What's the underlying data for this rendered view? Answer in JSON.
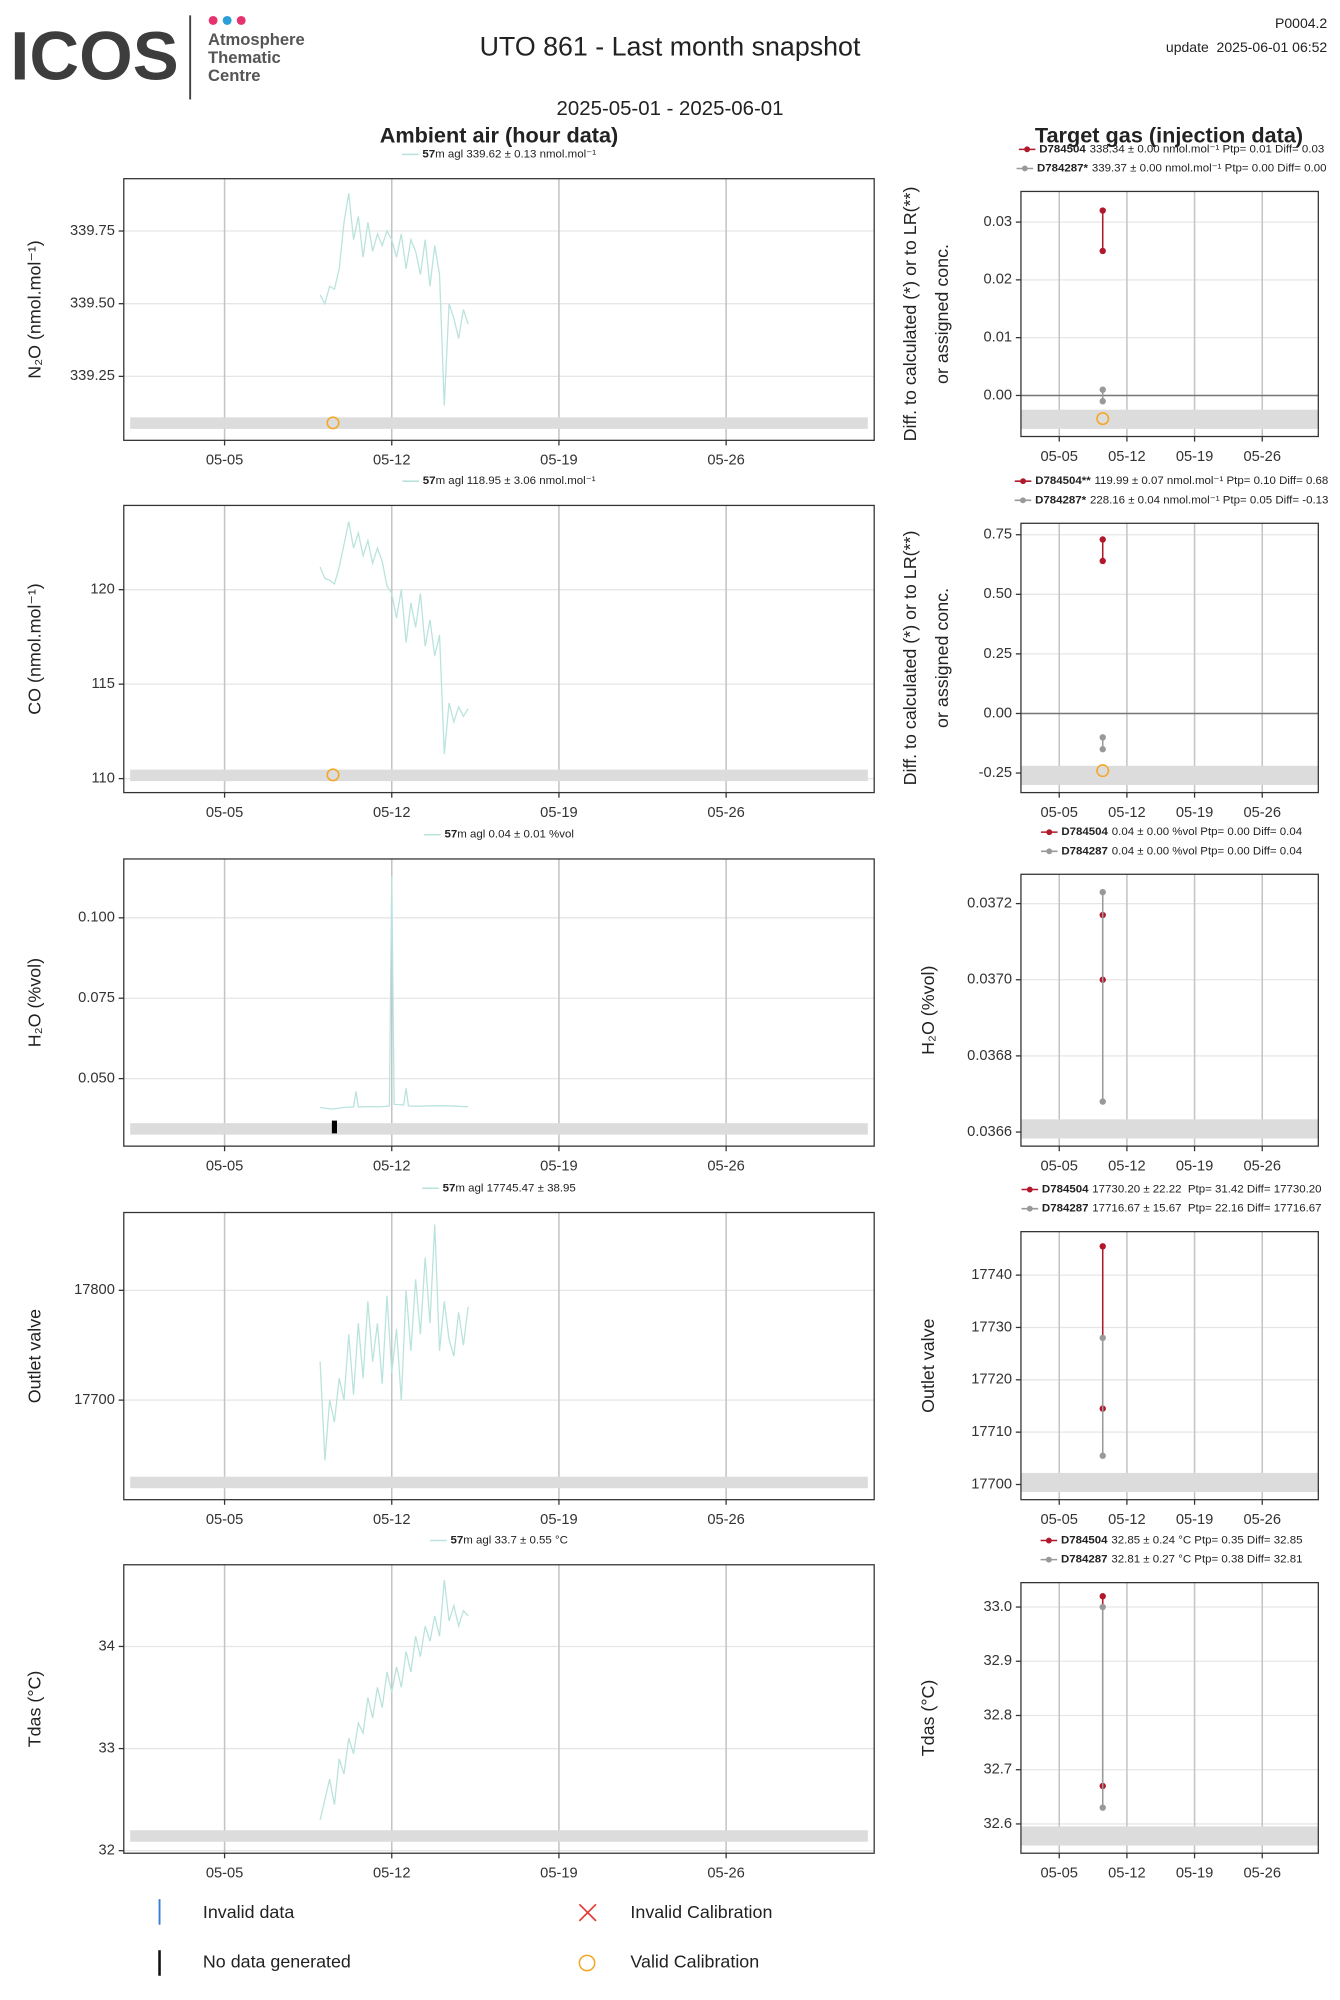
{
  "header": {
    "logo": "ICOS",
    "logo_lines": [
      "Atmosphere",
      "Thematic",
      "Centre"
    ],
    "title": "UTO 861 - Last month snapshot",
    "date_range": "2025-05-01 - 2025-06-01",
    "code": "P0004.2",
    "update": "update  2025-06-01 06:52",
    "section_left": "Ambient air (hour data)",
    "section_right": "Target gas (injection data)"
  },
  "legend": [
    "Invalid data",
    "Invalid Calibration",
    "No data generated",
    "Valid Calibration"
  ],
  "chart_data": [
    {
      "type": "line",
      "ylabel": "N₂O (nmol.mol⁻¹)",
      "xlim": [
        0.78,
        32.2
      ],
      "xticks": [
        {
          "value": 5,
          "label": "05-05"
        },
        {
          "value": 12,
          "label": "05-12"
        },
        {
          "value": 19,
          "label": "05-19"
        },
        {
          "value": 26,
          "label": "05-26"
        }
      ],
      "ylim": [
        339.03,
        339.93
      ],
      "yticks": [
        339.25,
        {
          "value": 339.5,
          "label": "339.50"
        },
        339.75
      ],
      "grid": true,
      "series": [
        {
          "name": "57",
          "stats": "m agl 339.62 ± 0.13 nmol.mol⁻¹",
          "color": "#b9e3dc",
          "x": [
            9.0,
            9.2,
            9.4,
            9.6,
            9.8,
            10.0,
            10.2,
            10.4,
            10.6,
            10.8,
            11.0,
            11.2,
            11.4,
            11.6,
            11.8,
            12.0,
            12.2,
            12.4,
            12.6,
            12.8,
            13.0,
            13.2,
            13.4,
            13.6,
            13.8,
            14.0,
            14.2,
            14.4,
            14.6,
            14.8,
            15.0,
            15.2
          ],
          "values": [
            339.53,
            339.5,
            339.56,
            339.55,
            339.62,
            339.78,
            339.88,
            339.72,
            339.8,
            339.66,
            339.78,
            339.68,
            339.74,
            339.7,
            339.75,
            339.72,
            339.66,
            339.74,
            339.62,
            339.72,
            339.68,
            339.6,
            339.72,
            339.56,
            339.7,
            339.6,
            339.15,
            339.5,
            339.45,
            339.38,
            339.48,
            339.43
          ]
        }
      ],
      "calibration": {
        "x": 9.54,
        "y": 339.09
      }
    },
    {
      "type": "dotline",
      "ylabel": [
        "Diff. to calculated (*) or to LR(**)",
        "or assigned conc."
      ],
      "xlim": [
        1.04,
        31.8
      ],
      "xticks": [
        {
          "value": 5,
          "label": "05-05"
        },
        {
          "value": 12,
          "label": "05-12"
        },
        {
          "value": 19,
          "label": "05-19"
        },
        {
          "value": 26,
          "label": "05-26"
        }
      ],
      "ylim": [
        -0.0071,
        0.0353
      ],
      "yticks": [
        {
          "value": 0,
          "label": "0.00"
        },
        0.01,
        0.02,
        0.03
      ],
      "grid": true,
      "zero_line": true,
      "series": [
        {
          "name": "D784504",
          "stats": "338.34 ± 0.00 nmol.mol⁻¹ Ptp= 0.01 Diff= 0.03",
          "color": "#b2182b",
          "x": [
            9.5,
            9.5
          ],
          "values": [
            0.032,
            0.025
          ]
        },
        {
          "name": "D784287*",
          "stats": "339.37 ± 0.00 nmol.mol⁻¹ Ptp= 0.00 Diff= 0.00",
          "color": "#999999",
          "x": [
            9.5,
            9.5
          ],
          "values": [
            0.001,
            -0.001
          ]
        }
      ],
      "calibration": {
        "x": 9.5,
        "y": -0.004
      }
    },
    {
      "type": "line",
      "ylabel": "CO (nmol.mol⁻¹)",
      "xlim": [
        0.78,
        32.2
      ],
      "xticks": [
        {
          "value": 5,
          "label": "05-05"
        },
        {
          "value": 12,
          "label": "05-12"
        },
        {
          "value": 19,
          "label": "05-19"
        },
        {
          "value": 26,
          "label": "05-26"
        }
      ],
      "ylim": [
        109.26,
        124.46
      ],
      "yticks": [
        110,
        115,
        120
      ],
      "grid": true,
      "series": [
        {
          "name": "57",
          "stats": "m agl 118.95 ± 3.06 nmol.mol⁻¹",
          "color": "#b9e3dc",
          "x": [
            9.0,
            9.2,
            9.4,
            9.6,
            9.8,
            10.0,
            10.2,
            10.4,
            10.6,
            10.8,
            11.0,
            11.2,
            11.4,
            11.6,
            11.8,
            12.0,
            12.2,
            12.4,
            12.6,
            12.8,
            13.0,
            13.2,
            13.4,
            13.6,
            13.8,
            14.0,
            14.2,
            14.4,
            14.6,
            14.8,
            15.0,
            15.2
          ],
          "values": [
            121.2,
            120.6,
            120.5,
            120.3,
            121.2,
            122.4,
            123.6,
            122.2,
            123.0,
            121.8,
            122.6,
            121.4,
            122.2,
            121.5,
            120.2,
            119.8,
            118.5,
            120.0,
            117.2,
            119.3,
            118.0,
            119.8,
            117.0,
            118.4,
            116.5,
            117.6,
            111.3,
            114.0,
            113.0,
            113.8,
            113.3,
            113.7
          ]
        }
      ],
      "calibration": {
        "x": 9.54,
        "y": 110.2
      }
    },
    {
      "type": "dotline",
      "ylabel": [
        "Diff. to calculated (*) or to LR(**)",
        "or assigned conc."
      ],
      "xlim": [
        1.04,
        31.8
      ],
      "xticks": [
        {
          "value": 5,
          "label": "05-05"
        },
        {
          "value": 12,
          "label": "05-12"
        },
        {
          "value": 19,
          "label": "05-19"
        },
        {
          "value": 26,
          "label": "05-26"
        }
      ],
      "ylim": [
        -0.332,
        0.798
      ],
      "yticks": [
        -0.25,
        {
          "value": 0,
          "label": "0.00"
        },
        0.25,
        {
          "value": 0.5,
          "label": "0.50"
        },
        0.75
      ],
      "grid": true,
      "zero_line": true,
      "series": [
        {
          "name": "D784504**",
          "stats": "119.99 ± 0.07 nmol.mol⁻¹ Ptp= 0.10 Diff= 0.68",
          "color": "#b2182b",
          "x": [
            9.5,
            9.5
          ],
          "values": [
            0.73,
            0.64
          ]
        },
        {
          "name": "D784287*",
          "stats": "228.16 ± 0.04 nmol.mol⁻¹ Ptp= 0.05 Diff= -0.13",
          "color": "#999999",
          "x": [
            9.5,
            9.5
          ],
          "values": [
            -0.1,
            -0.15
          ]
        }
      ],
      "calibration": {
        "x": 9.5,
        "y": -0.24
      }
    },
    {
      "type": "line",
      "ylabel": "H₂O (%vol)",
      "xlim": [
        0.78,
        32.2
      ],
      "xticks": [
        {
          "value": 5,
          "label": "05-05"
        },
        {
          "value": 12,
          "label": "05-12"
        },
        {
          "value": 19,
          "label": "05-19"
        },
        {
          "value": 26,
          "label": "05-26"
        }
      ],
      "ylim": [
        0.029,
        0.1183
      ],
      "yticks": [
        {
          "value": 0.05,
          "label": "0.050"
        },
        0.075,
        {
          "value": 0.1,
          "label": "0.100"
        }
      ],
      "grid": true,
      "series": [
        {
          "name": "57",
          "stats": "m agl 0.04 ± 0.01 %vol",
          "color": "#b9e3dc",
          "x": [
            9.0,
            9.5,
            10.0,
            10.4,
            10.5,
            10.6,
            11.0,
            11.5,
            11.9,
            12.0,
            12.1,
            12.5,
            12.6,
            12.7,
            13.0,
            13.5,
            14.0,
            14.5,
            15.0,
            15.2
          ],
          "values": [
            0.041,
            0.0405,
            0.041,
            0.0412,
            0.046,
            0.0412,
            0.0413,
            0.0412,
            0.0415,
            0.113,
            0.042,
            0.0418,
            0.047,
            0.0415,
            0.0414,
            0.0415,
            0.0416,
            0.0415,
            0.0413,
            0.0413
          ]
        }
      ],
      "no_data_x": [
        9.6
      ]
    },
    {
      "type": "dotline",
      "ylabel": "H₂O (%vol)",
      "xlim": [
        1.04,
        31.8
      ],
      "xticks": [
        {
          "value": 5,
          "label": "05-05"
        },
        {
          "value": 12,
          "label": "05-12"
        },
        {
          "value": 19,
          "label": "05-19"
        },
        {
          "value": 26,
          "label": "05-26"
        }
      ],
      "ylim": [
        0.036563,
        0.037277
      ],
      "yticks": [
        0.0366,
        0.0368,
        {
          "value": 0.037,
          "label": "0.0370"
        },
        0.0372
      ],
      "grid": true,
      "series": [
        {
          "name": "D784504",
          "stats": "0.04 ± 0.00 %vol Ptp= 0.00 Diff= 0.04",
          "color": "#b2182b",
          "x": [
            9.5,
            9.5
          ],
          "values": [
            0.03717,
            0.037
          ]
        },
        {
          "name": "D784287",
          "stats": "0.04 ± 0.00 %vol Ptp= 0.00 Diff= 0.04",
          "color": "#999999",
          "x": [
            9.5,
            9.5
          ],
          "values": [
            0.03723,
            0.03668
          ]
        }
      ]
    },
    {
      "type": "line",
      "ylabel": "Outlet valve",
      "xlim": [
        0.78,
        32.2
      ],
      "xticks": [
        {
          "value": 5,
          "label": "05-05"
        },
        {
          "value": 12,
          "label": "05-12"
        },
        {
          "value": 19,
          "label": "05-19"
        },
        {
          "value": 26,
          "label": "05-26"
        }
      ],
      "ylim": [
        17609.3,
        17870.9
      ],
      "yticks": [
        17700,
        17800
      ],
      "grid": true,
      "series": [
        {
          "name": "57",
          "stats": "m agl 17745.47 ± 38.95",
          "color": "#b9e3dc",
          "x": [
            9.0,
            9.2,
            9.4,
            9.6,
            9.8,
            10.0,
            10.2,
            10.4,
            10.6,
            10.8,
            11.0,
            11.2,
            11.4,
            11.6,
            11.8,
            12.0,
            12.2,
            12.4,
            12.6,
            12.8,
            13.0,
            13.2,
            13.4,
            13.6,
            13.8,
            14.0,
            14.2,
            14.4,
            14.6,
            14.8,
            15.0,
            15.2
          ],
          "values": [
            17735,
            17645,
            17700,
            17680,
            17720,
            17700,
            17760,
            17705,
            17770,
            17720,
            17790,
            17735,
            17770,
            17715,
            17795,
            17725,
            17765,
            17700,
            17800,
            17745,
            17810,
            17760,
            17830,
            17770,
            17860,
            17745,
            17790,
            17755,
            17740,
            17780,
            17750,
            17785
          ]
        }
      ]
    },
    {
      "type": "dotline",
      "ylabel": "Outlet valve",
      "xlim": [
        1.04,
        31.8
      ],
      "xticks": [
        {
          "value": 5,
          "label": "05-05"
        },
        {
          "value": 12,
          "label": "05-12"
        },
        {
          "value": 19,
          "label": "05-19"
        },
        {
          "value": 26,
          "label": "05-26"
        }
      ],
      "ylim": [
        17697.1,
        17748.3
      ],
      "yticks": [
        17700,
        17710,
        17720,
        17730,
        17740
      ],
      "grid": true,
      "series": [
        {
          "name": "D784504",
          "stats": "17730.20 ± 22.22  Ptp= 31.42 Diff= 17730.20",
          "color": "#b2182b",
          "x": [
            9.5,
            9.5
          ],
          "values": [
            17745.5,
            17714.5
          ]
        },
        {
          "name": "D784287",
          "stats": "17716.67 ± 15.67  Ptp= 22.16 Diff= 17716.67",
          "color": "#999999",
          "x": [
            9.5,
            9.5
          ],
          "values": [
            17728,
            17705.5
          ]
        }
      ]
    },
    {
      "type": "line",
      "ylabel": "Tdas (°C)",
      "xlim": [
        0.78,
        32.2
      ],
      "xticks": [
        {
          "value": 5,
          "label": "05-05"
        },
        {
          "value": 12,
          "label": "05-12"
        },
        {
          "value": 19,
          "label": "05-19"
        },
        {
          "value": 26,
          "label": "05-26"
        }
      ],
      "ylim": [
        31.975,
        34.8
      ],
      "yticks": [
        32,
        33,
        34
      ],
      "grid": true,
      "series": [
        {
          "name": "57",
          "stats": "m agl 33.7 ± 0.55 °C",
          "color": "#b9e3dc",
          "x": [
            9.0,
            9.2,
            9.4,
            9.6,
            9.8,
            10.0,
            10.2,
            10.4,
            10.6,
            10.8,
            11.0,
            11.2,
            11.4,
            11.6,
            11.8,
            12.0,
            12.2,
            12.4,
            12.6,
            12.8,
            13.0,
            13.2,
            13.4,
            13.6,
            13.8,
            14.0,
            14.2,
            14.4,
            14.6,
            14.8,
            15.0,
            15.2
          ],
          "values": [
            32.3,
            32.5,
            32.7,
            32.45,
            32.9,
            32.75,
            33.1,
            32.95,
            33.25,
            33.15,
            33.5,
            33.3,
            33.6,
            33.4,
            33.75,
            33.55,
            33.8,
            33.6,
            33.95,
            33.75,
            34.1,
            33.9,
            34.2,
            34.05,
            34.3,
            34.1,
            34.65,
            34.25,
            34.4,
            34.2,
            34.35,
            34.3
          ]
        }
      ]
    },
    {
      "type": "dotline",
      "ylabel": "Tdas (°C)",
      "xlim": [
        1.04,
        31.8
      ],
      "xticks": [
        {
          "value": 5,
          "label": "05-05"
        },
        {
          "value": 12,
          "label": "05-12"
        },
        {
          "value": 19,
          "label": "05-19"
        },
        {
          "value": 26,
          "label": "05-26"
        }
      ],
      "ylim": [
        32.546,
        33.045
      ],
      "yticks": [
        32.6,
        32.7,
        32.8,
        32.9,
        {
          "value": 33,
          "label": "33.0"
        }
      ],
      "grid": true,
      "series": [
        {
          "name": "D784504",
          "stats": "32.85 ± 0.24 °C Ptp= 0.35 Diff= 32.85",
          "color": "#b2182b",
          "x": [
            9.5,
            9.5
          ],
          "values": [
            33.02,
            32.67
          ]
        },
        {
          "name": "D784287",
          "stats": "32.81 ± 0.27 °C Ptp= 0.38 Diff= 32.81",
          "color": "#999999",
          "x": [
            9.5,
            9.5
          ],
          "values": [
            33.0,
            32.63
          ]
        }
      ]
    }
  ]
}
